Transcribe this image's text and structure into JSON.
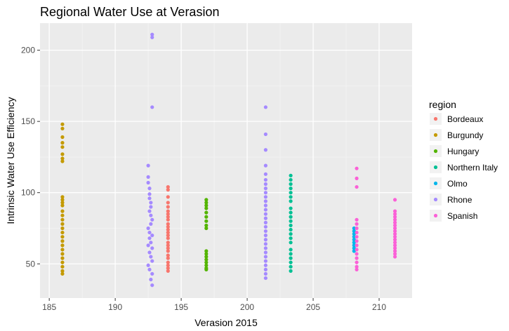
{
  "chart_data": {
    "type": "scatter",
    "title": "Regional Water Use at Verasion",
    "xlabel": "Verasion 2015",
    "ylabel": "Intrinsic Water Use Efficiency",
    "xlim": [
      184.3,
      212.5
    ],
    "ylim": [
      26,
      219
    ],
    "x_ticks": [
      185,
      190,
      195,
      200,
      205,
      210
    ],
    "y_ticks": [
      50,
      100,
      150,
      200
    ],
    "grid": true,
    "legend_title": "region",
    "legend_position": "right",
    "series": [
      {
        "name": "Bordeaux",
        "color": "#F8766D",
        "points": [
          [
            194,
            104
          ],
          [
            194,
            102
          ],
          [
            194,
            97
          ],
          [
            194,
            93
          ],
          [
            194,
            90
          ],
          [
            194,
            87
          ],
          [
            194,
            85
          ],
          [
            194,
            83
          ],
          [
            194,
            81
          ],
          [
            194,
            78
          ],
          [
            194,
            76
          ],
          [
            194,
            74
          ],
          [
            194,
            72
          ],
          [
            194,
            70
          ],
          [
            194,
            68
          ],
          [
            194,
            65
          ],
          [
            194,
            63
          ],
          [
            194,
            61
          ],
          [
            194,
            59
          ],
          [
            194,
            56
          ],
          [
            194,
            54
          ],
          [
            194,
            51
          ],
          [
            194,
            49
          ],
          [
            194,
            47
          ],
          [
            194,
            45
          ]
        ]
      },
      {
        "name": "Burgundy",
        "color": "#C49A00",
        "points": [
          [
            186,
            148
          ],
          [
            186,
            145
          ],
          [
            186,
            139
          ],
          [
            186,
            135
          ],
          [
            186,
            132
          ],
          [
            186,
            127
          ],
          [
            186,
            124
          ],
          [
            186,
            122
          ],
          [
            186,
            97
          ],
          [
            186,
            95
          ],
          [
            186,
            93
          ],
          [
            186,
            91
          ],
          [
            186,
            87
          ],
          [
            186,
            84
          ],
          [
            186,
            81
          ],
          [
            186,
            78
          ],
          [
            186,
            75
          ],
          [
            186,
            72
          ],
          [
            186,
            69
          ],
          [
            186,
            66
          ],
          [
            186,
            63
          ],
          [
            186,
            60
          ],
          [
            186,
            57
          ],
          [
            186,
            54
          ],
          [
            186,
            51
          ],
          [
            186,
            48
          ],
          [
            186,
            45
          ],
          [
            186,
            43
          ]
        ]
      },
      {
        "name": "Hungary",
        "color": "#53B400",
        "points": [
          [
            196.9,
            95
          ],
          [
            196.9,
            93
          ],
          [
            196.9,
            91
          ],
          [
            196.9,
            89
          ],
          [
            196.9,
            86
          ],
          [
            196.9,
            83
          ],
          [
            196.9,
            80
          ],
          [
            196.9,
            77
          ],
          [
            196.9,
            75
          ],
          [
            196.9,
            59
          ],
          [
            196.9,
            57
          ],
          [
            196.9,
            55
          ],
          [
            196.9,
            53
          ],
          [
            196.9,
            51
          ],
          [
            196.9,
            49
          ],
          [
            196.9,
            47
          ],
          [
            196.9,
            46
          ]
        ]
      },
      {
        "name": "Northern Italy",
        "color": "#00C094",
        "points": [
          [
            203.3,
            112
          ],
          [
            203.3,
            109
          ],
          [
            203.3,
            106
          ],
          [
            203.3,
            103
          ],
          [
            203.3,
            100
          ],
          [
            203.3,
            97
          ],
          [
            203.3,
            94
          ],
          [
            203.3,
            89
          ],
          [
            203.3,
            86
          ],
          [
            203.3,
            83
          ],
          [
            203.3,
            80
          ],
          [
            203.3,
            77
          ],
          [
            203.3,
            74
          ],
          [
            203.3,
            71
          ],
          [
            203.3,
            68
          ],
          [
            203.3,
            65
          ],
          [
            203.3,
            60
          ],
          [
            203.3,
            57
          ],
          [
            203.3,
            54
          ],
          [
            203.3,
            51
          ],
          [
            203.3,
            48
          ],
          [
            203.3,
            45
          ]
        ]
      },
      {
        "name": "Olmo",
        "color": "#00B6EB",
        "points": [
          [
            208.1,
            75
          ],
          [
            208.1,
            73
          ],
          [
            208.1,
            71
          ],
          [
            208.1,
            69
          ],
          [
            208.1,
            67
          ],
          [
            208.1,
            65
          ],
          [
            208.1,
            63
          ],
          [
            208.1,
            61
          ],
          [
            208.1,
            59
          ]
        ]
      },
      {
        "name": "Rhone",
        "color": "#A58AFF",
        "points": [
          [
            192.8,
            211
          ],
          [
            192.8,
            209
          ],
          [
            192.8,
            160
          ],
          [
            192.5,
            119
          ],
          [
            192.5,
            111
          ],
          [
            192.5,
            107
          ],
          [
            192.6,
            103
          ],
          [
            192.6,
            99
          ],
          [
            192.6,
            96
          ],
          [
            192.7,
            93
          ],
          [
            192.7,
            90
          ],
          [
            192.6,
            87
          ],
          [
            192.7,
            84
          ],
          [
            192.8,
            81
          ],
          [
            192.7,
            78
          ],
          [
            192.5,
            75
          ],
          [
            192.6,
            72
          ],
          [
            192.8,
            70
          ],
          [
            192.6,
            68
          ],
          [
            192.7,
            65
          ],
          [
            192.5,
            63
          ],
          [
            192.8,
            61
          ],
          [
            192.6,
            58
          ],
          [
            192.7,
            55
          ],
          [
            192.8,
            52
          ],
          [
            192.5,
            49
          ],
          [
            192.6,
            46
          ],
          [
            192.8,
            43
          ],
          [
            192.7,
            39
          ],
          [
            192.8,
            35
          ],
          [
            201.4,
            160
          ],
          [
            201.4,
            141
          ],
          [
            201.4,
            130
          ],
          [
            201.4,
            119
          ],
          [
            201.4,
            113
          ],
          [
            201.4,
            109
          ],
          [
            201.4,
            106
          ],
          [
            201.4,
            103
          ],
          [
            201.4,
            100
          ],
          [
            201.4,
            97
          ],
          [
            201.4,
            94
          ],
          [
            201.4,
            91
          ],
          [
            201.4,
            88
          ],
          [
            201.4,
            85
          ],
          [
            201.4,
            82
          ],
          [
            201.4,
            79
          ],
          [
            201.4,
            76
          ],
          [
            201.4,
            73
          ],
          [
            201.4,
            70
          ],
          [
            201.4,
            67
          ],
          [
            201.4,
            64
          ],
          [
            201.4,
            61
          ],
          [
            201.4,
            58
          ],
          [
            201.4,
            55
          ],
          [
            201.4,
            52
          ],
          [
            201.4,
            49
          ],
          [
            201.4,
            46
          ],
          [
            201.4,
            43
          ],
          [
            201.4,
            40
          ]
        ]
      },
      {
        "name": "Spanish",
        "color": "#FB61D7",
        "points": [
          [
            208.3,
            117
          ],
          [
            208.3,
            110
          ],
          [
            208.3,
            104
          ],
          [
            208.3,
            81
          ],
          [
            208.3,
            78
          ],
          [
            208.3,
            75
          ],
          [
            208.3,
            72
          ],
          [
            208.3,
            69
          ],
          [
            208.3,
            66
          ],
          [
            208.3,
            63
          ],
          [
            208.3,
            60
          ],
          [
            208.3,
            57
          ],
          [
            208.3,
            54
          ],
          [
            208.3,
            51
          ],
          [
            208.3,
            48
          ],
          [
            208.3,
            46
          ],
          [
            211.2,
            95
          ],
          [
            211.2,
            87
          ],
          [
            211.2,
            85
          ],
          [
            211.2,
            83
          ],
          [
            211.2,
            81
          ],
          [
            211.2,
            79
          ],
          [
            211.2,
            77
          ],
          [
            211.2,
            75
          ],
          [
            211.2,
            73
          ],
          [
            211.2,
            71
          ],
          [
            211.2,
            69
          ],
          [
            211.2,
            67
          ],
          [
            211.2,
            65
          ],
          [
            211.2,
            63
          ],
          [
            211.2,
            61
          ],
          [
            211.2,
            59
          ],
          [
            211.2,
            57
          ],
          [
            211.2,
            55
          ]
        ]
      }
    ]
  }
}
